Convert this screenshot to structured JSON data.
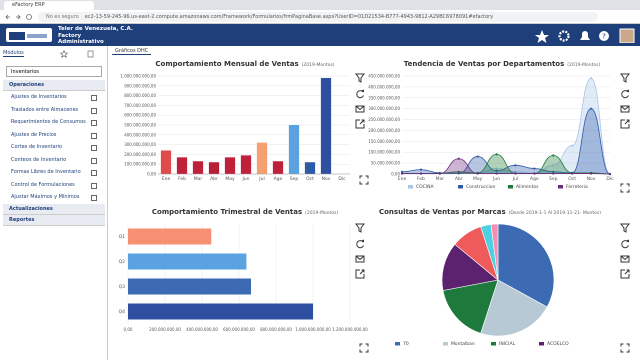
{
  "browser": {
    "tab_title": "eFactory ERP",
    "security": "No es seguro",
    "url": "ec2-13-59-245-96.us-east-2.compute.amazonaws.com/Framework/Formularios/frmPaginaBase.aspx?UserID=01D21534-B777-4943-9812-A29BC6978091#efactory"
  },
  "header": {
    "company": "Teler de Venezuela, C.A.",
    "product": "Factory",
    "module": "Administrativo"
  },
  "sidebar": {
    "tab": "Módulos",
    "selected_module": "Inventarios",
    "sections": [
      {
        "title": "Operaciones",
        "items": [
          "Ajustes de Inventarios",
          "Traslados entre Almacenes",
          "Requerimientos de Consumos",
          "Ajustes de Precios",
          "Cortes de Inventario",
          "Conteos de Inventario",
          "Formas Libres de Inventario",
          "Control de Formulaciones",
          "Ajustar Máximos y Mínimos"
        ]
      },
      {
        "title": "Actualizaciones"
      },
      {
        "title": "Reportes"
      }
    ]
  },
  "main_tab": "Gráficos DHC",
  "chart_data": [
    {
      "type": "bar",
      "title": "Comportamiento Mensual de Ventas",
      "subtitle": "(2019-Montos)",
      "categories": [
        "Ene",
        "Feb",
        "Mar",
        "Abr",
        "May",
        "Jun",
        "Jul",
        "Ago",
        "Sep",
        "Oct",
        "Nov",
        "Dic"
      ],
      "values": [
        240000000,
        170000000,
        130000000,
        120000000,
        170000000,
        190000000,
        320000000,
        130000000,
        500000000,
        120000000,
        980000000,
        0
      ],
      "colors": [
        "#e04b4b",
        "#c0213a",
        "#c0213a",
        "#b81d38",
        "#c0213a",
        "#c0213a",
        "#f4a070",
        "#c0213a",
        "#5aa2e0",
        "#2e5aa8",
        "#2e4fa0",
        "#2e4fa0"
      ],
      "ylim": [
        0,
        1000000000
      ],
      "yticks": [
        {
          "value": 0,
          "label": "0,00"
        },
        {
          "value": 100000000,
          "label": "100.000.000,00"
        },
        {
          "value": 200000000,
          "label": "200.000.000,00"
        },
        {
          "value": 300000000,
          "label": "300.000.000,00"
        },
        {
          "value": 400000000,
          "label": "400.000.000,00"
        },
        {
          "value": 500000000,
          "label": "500.000.000,00"
        },
        {
          "value": 600000000,
          "label": "600.000.000,00"
        },
        {
          "value": 700000000,
          "label": "700.000.000,00"
        },
        {
          "value": 800000000,
          "label": "800.000.000,00"
        },
        {
          "value": 900000000,
          "label": "900.000.000,00"
        },
        {
          "value": 1000000000,
          "label": "1.000.000.000,00"
        }
      ],
      "grid": true
    },
    {
      "type": "area",
      "title": "Tendencia de Ventas por Departamentos",
      "subtitle": "(2019-Montos)",
      "categories": [
        "Ene",
        "Feb",
        "Mar",
        "Abr",
        "May",
        "Jun",
        "Jul",
        "Ago",
        "Sep",
        "Oct",
        "Nov",
        "Dic"
      ],
      "series": [
        {
          "name": "COCINA",
          "color": "#a9c6e8",
          "values": [
            2000000,
            1000000,
            1000000,
            3000000,
            5000000,
            25000000,
            10000000,
            4000000,
            40000000,
            130000000,
            440000000,
            0
          ]
        },
        {
          "name": "Construccion",
          "color": "#2e5aa8",
          "values": [
            10000000,
            20000000,
            5000000,
            3000000,
            80000000,
            15000000,
            40000000,
            25000000,
            10000000,
            5000000,
            300000000,
            0
          ]
        },
        {
          "name": "Alimentos",
          "color": "#1f7a3a",
          "values": [
            3000000,
            2000000,
            4000000,
            10000000,
            5000000,
            90000000,
            3000000,
            2000000,
            85000000,
            5000000,
            5000000,
            0
          ]
        },
        {
          "name": "Ferreteria",
          "color": "#6a2c80",
          "values": [
            2000000,
            2000000,
            2000000,
            70000000,
            2000000,
            2000000,
            2000000,
            2000000,
            2000000,
            2000000,
            2000000,
            0
          ]
        }
      ],
      "ylim": [
        0,
        450000000
      ],
      "yticks": [
        {
          "value": 0,
          "label": "0,00"
        },
        {
          "value": 50000000,
          "label": "50.000.000,00"
        },
        {
          "value": 100000000,
          "label": "100.000.000,00"
        },
        {
          "value": 150000000,
          "label": "150.000.000,00"
        },
        {
          "value": 200000000,
          "label": "200.000.000,00"
        },
        {
          "value": 250000000,
          "label": "250.000.000,00"
        },
        {
          "value": 300000000,
          "label": "300.000.000,00"
        },
        {
          "value": 350000000,
          "label": "350.000.000,00"
        },
        {
          "value": 400000000,
          "label": "400.000.000,00"
        },
        {
          "value": 450000000,
          "label": "450.000.000,00"
        }
      ],
      "grid": true
    },
    {
      "type": "hbar",
      "title": "Comportamiento Trimestral de Ventas",
      "subtitle": "(2019-Montos)",
      "categories": [
        "Q1",
        "Q2",
        "Q3",
        "Q4"
      ],
      "values": [
        450000000,
        640000000,
        665000000,
        1000000000
      ],
      "colors": [
        "#f79072",
        "#5aa2e0",
        "#3d6bb3",
        "#2e4fa0"
      ],
      "xlim": [
        0,
        1200000000
      ],
      "xticks": [
        {
          "value": 0,
          "label": "0,00"
        },
        {
          "value": 200000000,
          "label": "200.000.000,00"
        },
        {
          "value": 400000000,
          "label": "400.000.000,00"
        },
        {
          "value": 600000000,
          "label": "600.000.000,00"
        },
        {
          "value": 800000000,
          "label": "800.000.000,00"
        },
        {
          "value": 1000000000,
          "label": "1.000.000.000,00"
        },
        {
          "value": 1200000000,
          "label": "1.200.000.000,00"
        }
      ],
      "grid": true
    },
    {
      "type": "pie",
      "title": "Consultas de Ventas por Marcas",
      "subtitle": "(Desde 2019-1-1 Al 2019-11-21- Montos)",
      "categories": [
        "70",
        "Montalban",
        "INICIAL",
        "ACOELCO",
        null,
        null,
        null
      ],
      "values": [
        33,
        22,
        17,
        14,
        9,
        3,
        2
      ],
      "colors": [
        "#3d6bb3",
        "#b8c9d6",
        "#1e7a3c",
        "#5c2270",
        "#ef5a5a",
        "#4dd0e1",
        "#f48fb1"
      ]
    }
  ]
}
